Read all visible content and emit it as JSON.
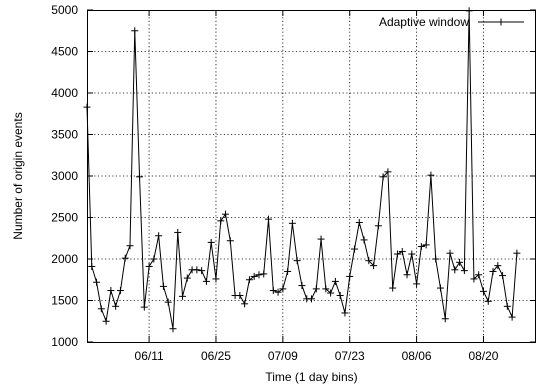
{
  "chart_data": {
    "type": "line",
    "title": "",
    "xlabel": "Time (1 day bins)",
    "ylabel": "Number of origin events",
    "ylim": [
      1000,
      5000
    ],
    "xlim": [
      "05/29",
      "08/31"
    ],
    "y_ticks": [
      1000,
      1500,
      2000,
      2500,
      3000,
      3500,
      4000,
      4500,
      5000
    ],
    "x_ticks": [
      {
        "value": "06/11",
        "label": "06/11"
      },
      {
        "value": "06/25",
        "label": "06/25"
      },
      {
        "value": "07/09",
        "label": "07/09"
      },
      {
        "value": "07/23",
        "label": "07/23"
      },
      {
        "value": "08/06",
        "label": "08/06"
      },
      {
        "value": "08/20",
        "label": "08/20"
      }
    ],
    "grid": true,
    "legend": {
      "position": "top-right",
      "entries": [
        "Adaptive window"
      ]
    },
    "marker": "plus",
    "series": [
      {
        "name": "Adaptive window",
        "points": [
          [
            "05/29",
            3830
          ],
          [
            "05/30",
            1910
          ],
          [
            "05/31",
            1720
          ],
          [
            "06/01",
            1400
          ],
          [
            "06/02",
            1250
          ],
          [
            "06/03",
            1620
          ],
          [
            "06/04",
            1430
          ],
          [
            "06/05",
            1620
          ],
          [
            "06/06",
            2010
          ],
          [
            "06/07",
            2160
          ],
          [
            "06/08",
            4750
          ],
          [
            "06/09",
            2990
          ],
          [
            "06/10",
            1420
          ],
          [
            "06/11",
            1910
          ],
          [
            "06/12",
            2000
          ],
          [
            "06/13",
            2280
          ],
          [
            "06/14",
            1670
          ],
          [
            "06/15",
            1480
          ],
          [
            "06/16",
            1160
          ],
          [
            "06/17",
            2320
          ],
          [
            "06/18",
            1550
          ],
          [
            "06/19",
            1770
          ],
          [
            "06/20",
            1870
          ],
          [
            "06/21",
            1870
          ],
          [
            "06/22",
            1860
          ],
          [
            "06/23",
            1730
          ],
          [
            "06/24",
            2200
          ],
          [
            "06/25",
            1760
          ],
          [
            "06/26",
            2460
          ],
          [
            "06/27",
            2540
          ],
          [
            "06/28",
            2220
          ],
          [
            "06/29",
            1560
          ],
          [
            "06/30",
            1560
          ],
          [
            "07/01",
            1460
          ],
          [
            "07/02",
            1750
          ],
          [
            "07/03",
            1790
          ],
          [
            "07/04",
            1810
          ],
          [
            "07/05",
            1820
          ],
          [
            "07/06",
            2480
          ],
          [
            "07/07",
            1620
          ],
          [
            "07/08",
            1600
          ],
          [
            "07/09",
            1640
          ],
          [
            "07/10",
            1850
          ],
          [
            "07/11",
            2430
          ],
          [
            "07/12",
            1980
          ],
          [
            "07/13",
            1680
          ],
          [
            "07/14",
            1520
          ],
          [
            "07/15",
            1520
          ],
          [
            "07/16",
            1640
          ],
          [
            "07/17",
            2240
          ],
          [
            "07/18",
            1640
          ],
          [
            "07/19",
            1590
          ],
          [
            "07/20",
            1730
          ],
          [
            "07/21",
            1560
          ],
          [
            "07/22",
            1350
          ],
          [
            "07/23",
            1790
          ],
          [
            "07/24",
            2120
          ],
          [
            "07/25",
            2440
          ],
          [
            "07/26",
            2230
          ],
          [
            "07/27",
            1980
          ],
          [
            "07/28",
            1920
          ],
          [
            "07/29",
            2400
          ],
          [
            "07/30",
            2990
          ],
          [
            "07/31",
            3050
          ],
          [
            "08/01",
            1650
          ],
          [
            "08/02",
            2060
          ],
          [
            "08/03",
            2090
          ],
          [
            "08/04",
            1810
          ],
          [
            "08/05",
            2060
          ],
          [
            "08/06",
            1700
          ],
          [
            "08/07",
            2150
          ],
          [
            "08/08",
            2170
          ],
          [
            "08/09",
            3010
          ],
          [
            "08/10",
            2000
          ],
          [
            "08/11",
            1650
          ],
          [
            "08/12",
            1280
          ],
          [
            "08/13",
            2070
          ],
          [
            "08/14",
            1870
          ],
          [
            "08/15",
            1960
          ],
          [
            "08/16",
            1860
          ],
          [
            "08/17",
            4990
          ],
          [
            "08/18",
            1760
          ],
          [
            "08/19",
            1810
          ],
          [
            "08/20",
            1610
          ],
          [
            "08/21",
            1490
          ],
          [
            "08/22",
            1850
          ],
          [
            "08/23",
            1920
          ],
          [
            "08/24",
            1800
          ],
          [
            "08/25",
            1430
          ],
          [
            "08/26",
            1300
          ],
          [
            "08/27",
            2070
          ]
        ]
      }
    ]
  }
}
